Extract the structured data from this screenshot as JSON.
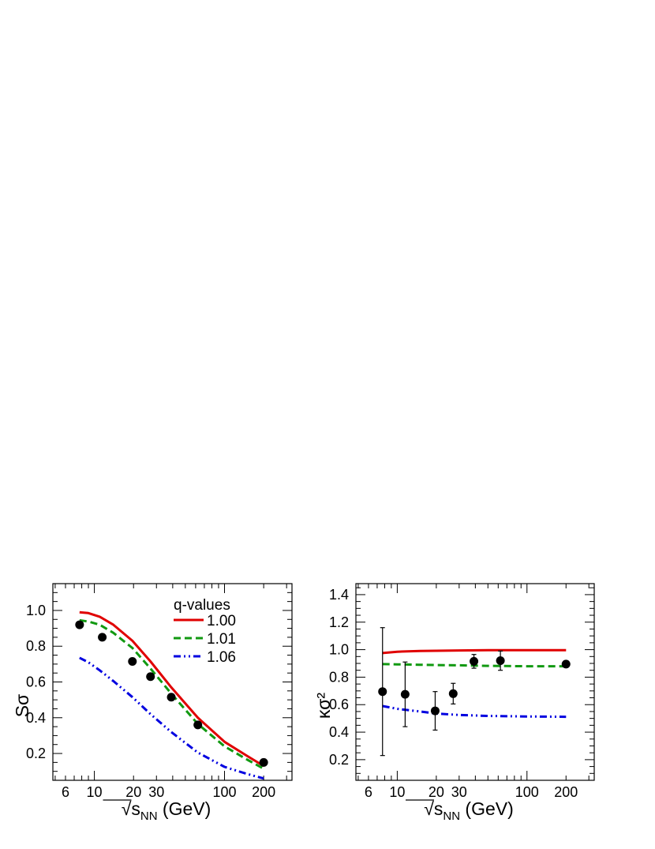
{
  "legend": {
    "title": "q-values",
    "entries": [
      {
        "label": "1.00",
        "color": "#e00000",
        "style": "solid"
      },
      {
        "label": "1.01",
        "color": "#119911",
        "style": "dashed"
      },
      {
        "label": "1.06",
        "color": "#0000e0",
        "style": "dash-dot-dot"
      }
    ]
  },
  "chart_data": [
    {
      "type": "scatter",
      "title": "",
      "xlabel": "√s_NN (GeV)",
      "ylabel": "Sσ",
      "x_scale": "log",
      "xlim": [
        4.8,
        330
      ],
      "ylim": [
        0.05,
        1.15
      ],
      "x_ticks": [
        6,
        10,
        20,
        30,
        100,
        200
      ],
      "y_ticks": [
        0.2,
        0.4,
        0.6,
        0.8,
        1.0
      ],
      "y_tick_labels": [
        "0.2",
        "0.4",
        "0.6",
        "0.8",
        "1.0"
      ],
      "grid": false,
      "legend_position": "top-right",
      "points": {
        "name": "data",
        "x": [
          7.7,
          11.5,
          19.6,
          27,
          39,
          62.4,
          200
        ],
        "y": [
          0.92,
          0.85,
          0.715,
          0.63,
          0.515,
          0.36,
          0.15
        ]
      },
      "series": [
        {
          "name": "1.00",
          "x": [
            7.7,
            9,
            11,
            14,
            19.6,
            27,
            39,
            62.4,
            100,
            150,
            200
          ],
          "y": [
            0.99,
            0.985,
            0.965,
            0.92,
            0.83,
            0.715,
            0.57,
            0.4,
            0.265,
            0.185,
            0.13
          ]
        },
        {
          "name": "1.01",
          "x": [
            7.7,
            9,
            11,
            14,
            19.6,
            27,
            39,
            62.4,
            100,
            150,
            200
          ],
          "y": [
            0.945,
            0.938,
            0.92,
            0.875,
            0.79,
            0.675,
            0.535,
            0.365,
            0.24,
            0.165,
            0.115
          ]
        },
        {
          "name": "1.06",
          "x": [
            7.7,
            9,
            11,
            14,
            19.6,
            27,
            39,
            62.4,
            100,
            150,
            200
          ],
          "y": [
            0.735,
            0.71,
            0.665,
            0.605,
            0.515,
            0.42,
            0.32,
            0.205,
            0.125,
            0.085,
            0.06
          ]
        }
      ]
    },
    {
      "type": "scatter",
      "title": "",
      "xlabel": "√s_NN (GeV)",
      "ylabel": "κσ²",
      "x_scale": "log",
      "xlim": [
        4.8,
        330
      ],
      "ylim": [
        0.05,
        1.48
      ],
      "x_ticks": [
        6,
        10,
        20,
        30,
        100,
        200
      ],
      "y_ticks": [
        0.2,
        0.4,
        0.6,
        0.8,
        1.0,
        1.2,
        1.4
      ],
      "y_tick_labels": [
        "0.2",
        "0.4",
        "0.6",
        "0.8",
        "1.0",
        "1.2",
        "1.4"
      ],
      "grid": false,
      "points": {
        "name": "data",
        "x": [
          7.7,
          11.5,
          19.6,
          27,
          39,
          62.4,
          200
        ],
        "y": [
          0.695,
          0.675,
          0.555,
          0.68,
          0.915,
          0.92,
          0.895
        ],
        "err": [
          0.465,
          0.235,
          0.14,
          0.075,
          0.05,
          0.07,
          0.02
        ]
      },
      "series": [
        {
          "name": "1.00",
          "x": [
            7.7,
            10,
            15,
            20,
            30,
            50,
            100,
            200
          ],
          "y": [
            0.975,
            0.985,
            0.99,
            0.992,
            0.994,
            0.996,
            0.996,
            0.996
          ]
        },
        {
          "name": "1.01",
          "x": [
            7.7,
            10,
            15,
            20,
            30,
            50,
            100,
            200
          ],
          "y": [
            0.895,
            0.893,
            0.89,
            0.888,
            0.886,
            0.882,
            0.879,
            0.879
          ]
        },
        {
          "name": "1.06",
          "x": [
            7.7,
            10,
            15,
            20,
            30,
            50,
            100,
            200
          ],
          "y": [
            0.59,
            0.57,
            0.55,
            0.535,
            0.525,
            0.518,
            0.514,
            0.512
          ]
        }
      ]
    }
  ]
}
